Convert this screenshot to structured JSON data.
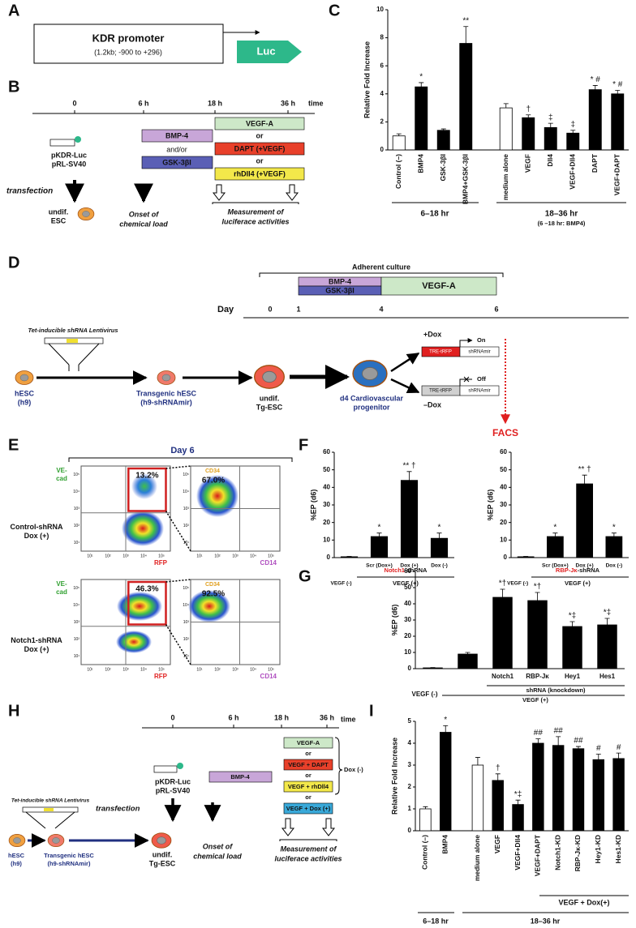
{
  "panel_labels": [
    "A",
    "B",
    "C",
    "D",
    "E",
    "F",
    "G",
    "H",
    "I"
  ],
  "panel_a": {
    "promoter": "KDR promoter",
    "detail": "(1.2kb; -900 to +296)",
    "reporter": "Luc"
  },
  "panel_b": {
    "times": [
      "0",
      "6 h",
      "18 h",
      "36 h"
    ],
    "time_unit": "time",
    "plasmids": [
      "pKDR-Luc",
      "pRL-SV40"
    ],
    "transfection": "transfection",
    "cell": [
      "undif.",
      "ESC"
    ],
    "onset": [
      "Onset of",
      "chemical load"
    ],
    "measurement": [
      "Measurement of",
      "luciferace activities"
    ],
    "early": [
      "BMP-4",
      "and/or",
      "GSK-3βI"
    ],
    "late": [
      "VEGF-A",
      "or",
      "DAPT (+VEGF)",
      "or",
      "rhDll4 (+VEGF)"
    ]
  },
  "panel_d": {
    "culture": "Adherent culture",
    "early": [
      "BMP-4",
      "GSK-3βI"
    ],
    "late": "VEGF-A",
    "day": "Day",
    "days": [
      "0",
      "1",
      "4",
      "6"
    ],
    "vector": "Tet-inducible shRNA Lentivirus",
    "cells": [
      [
        "hESC",
        "(h9)"
      ],
      [
        "Transgenic hESC",
        "(h9-shRNAmir)"
      ],
      [
        "undif.",
        "Tg-ESC"
      ],
      [
        "d4 Cardiovascular",
        "progenitor"
      ]
    ],
    "on": {
      "condition": "+Dox",
      "state": "On",
      "promoter": "TRE-tRFP",
      "cassette": "shRNAmir"
    },
    "off": {
      "condition": "–Dox",
      "state": "Off",
      "promoter": "TRE-tRFP",
      "cassette": "shRNAmir"
    },
    "readout": "FACS"
  },
  "panel_e": {
    "title": "Day 6",
    "y_left": [
      "VE-",
      "cad"
    ],
    "x_left": "RFP",
    "y_right": "CD34",
    "x_right": "CD14",
    "axis_ticks": [
      "10¹",
      "10²",
      "10³",
      "10⁴",
      "10⁵"
    ],
    "rows": [
      {
        "name": [
          "Control-shRNA",
          "Dox (+)"
        ],
        "gated": "13.2%",
        "cd34": "67.0%"
      },
      {
        "name": [
          "Notch1-shRNA",
          "Dox (+)"
        ],
        "gated": "46.3%",
        "cd34": "92.5%"
      }
    ]
  },
  "panel_h": {
    "times": [
      "0",
      "6 h",
      "18 h",
      "36 h"
    ],
    "time_unit": "time",
    "early": "BMP-4",
    "late": [
      "VEGF-A",
      "or",
      "VEGF + DAPT",
      "or",
      "VEGF + rhDll4",
      "or",
      "VEGF + Dox (+)"
    ],
    "dox": "Dox (-)",
    "plasmids": [
      "pKDR-Luc",
      "pRL-SV40"
    ],
    "transfection": "transfection",
    "cell": [
      "undif.",
      "Tg-ESC"
    ],
    "onset": [
      "Onset of",
      "chemical load"
    ],
    "measurement": [
      "Measurement of",
      "luciferace activities"
    ],
    "vector": "Tet-inducible shRNA Lentivirus",
    "cells": [
      [
        "hESC",
        "(h9)"
      ],
      [
        "Transgenic hESC",
        "(h9-shRNAmir)"
      ]
    ]
  },
  "chart_data": [
    {
      "type": "bar",
      "ylabel": "Relative Fold Increase",
      "categories": [
        "Control (–)",
        "BMP4",
        "GSK-3βI",
        "BMP4+GSK-3βI",
        "medium alone",
        "VEGF",
        "Dll4",
        "VEGF+Dll4",
        "DAPT",
        "VEGF+DAPT"
      ],
      "values": [
        1.0,
        4.5,
        1.4,
        7.6,
        3.0,
        2.3,
        1.6,
        1.2,
        4.3,
        4.0
      ],
      "errors": [
        0.15,
        0.3,
        0.1,
        1.2,
        0.3,
        0.2,
        0.3,
        0.2,
        0.3,
        0.25
      ],
      "colors": [
        "#ffffff",
        "#000000",
        "#000000",
        "#000000",
        "#ffffff",
        "#000000",
        "#000000",
        "#000000",
        "#000000",
        "#000000"
      ],
      "annotations": [
        null,
        "*",
        null,
        "**",
        null,
        "†",
        "‡",
        "‡",
        "* #",
        "* #"
      ],
      "ylim": [
        0,
        10
      ],
      "yticks": [
        0,
        2,
        4,
        6,
        8,
        10
      ],
      "group_labels": [
        "6–18 hr",
        "18–36 hr",
        "(6 –18 hr: BMP4)"
      ]
    },
    {
      "type": "bar",
      "ylabel": "%EP (d6)",
      "categories": [
        "VEGF (-)",
        "Scr (Dox+)",
        "Dox (+)",
        "Dox (-)"
      ],
      "values": [
        0.5,
        12,
        44,
        11
      ],
      "errors": [
        0.2,
        2,
        5,
        3
      ],
      "colors": [
        "#000000",
        "#000000",
        "#000000",
        "#000000"
      ],
      "annotations": [
        null,
        "*",
        "** †",
        "*"
      ],
      "ylim": [
        0,
        60
      ],
      "yticks": [
        0,
        10,
        20,
        30,
        40,
        50,
        60
      ],
      "knockdown_target": "Notch1",
      "knockdown_suffix": "-shRNA",
      "group_label": "VEGF (+)"
    },
    {
      "type": "bar",
      "ylabel": "%EP (d6)",
      "categories": [
        "VEGF (-)",
        "Scr (Dox+)",
        "Dox (+)",
        "Dox (-)"
      ],
      "values": [
        0.5,
        12,
        42,
        12
      ],
      "errors": [
        0.2,
        2,
        5,
        2
      ],
      "colors": [
        "#000000",
        "#000000",
        "#000000",
        "#000000"
      ],
      "annotations": [
        null,
        "*",
        "** †",
        "*"
      ],
      "ylim": [
        0,
        60
      ],
      "yticks": [
        0,
        10,
        20,
        30,
        40,
        50,
        60
      ],
      "knockdown_target": "RBP-Jκ",
      "knockdown_suffix": "-shRNA",
      "group_label": "VEGF (+)"
    },
    {
      "type": "bar",
      "ylabel": "%EP (d6)",
      "categories": [
        "VEGF (-)",
        null,
        "Notch1",
        "RBP-Jκ",
        "Hey1",
        "Hes1"
      ],
      "values": [
        0.5,
        9,
        44,
        42,
        26,
        27
      ],
      "errors": [
        0.2,
        1,
        5,
        5,
        3,
        4
      ],
      "colors": [
        "#000000",
        "#000000",
        "#000000",
        "#000000",
        "#000000",
        "#000000"
      ],
      "annotations": [
        null,
        null,
        "*†",
        "*†",
        "*‡",
        "*‡"
      ],
      "ylim": [
        0,
        60
      ],
      "yticks": [
        0,
        10,
        20,
        30,
        40,
        50,
        60
      ],
      "group_labels": [
        "shRNA (knockdown)",
        "VEGF (+)"
      ]
    },
    {
      "type": "bar",
      "ylabel": "Relative Fold Increase",
      "categories": [
        "Control (–)",
        "BMP4",
        "medium alone",
        "VEGF",
        "VEGF+Dll4",
        "VEGF+DAPT",
        "Notch1-KD",
        "RBP-Jκ-KD",
        "Hey1-KD",
        "Hes1-KD"
      ],
      "values": [
        1.0,
        4.5,
        3.0,
        2.3,
        1.2,
        4.0,
        3.9,
        3.75,
        3.25,
        3.3
      ],
      "errors": [
        0.1,
        0.3,
        0.35,
        0.3,
        0.2,
        0.2,
        0.4,
        0.1,
        0.25,
        0.25
      ],
      "colors": [
        "#ffffff",
        "#000000",
        "#ffffff",
        "#000000",
        "#000000",
        "#000000",
        "#000000",
        "#000000",
        "#000000",
        "#000000"
      ],
      "annotations": [
        null,
        "*",
        null,
        "†",
        "*‡",
        "##",
        "##",
        "##",
        "#",
        "#"
      ],
      "ylim": [
        0,
        5
      ],
      "yticks": [
        0,
        1,
        2,
        3,
        4,
        5
      ],
      "group_labels": [
        "VEGF + Dox(+)",
        "6–18 hr",
        "18–36 hr"
      ]
    }
  ]
}
